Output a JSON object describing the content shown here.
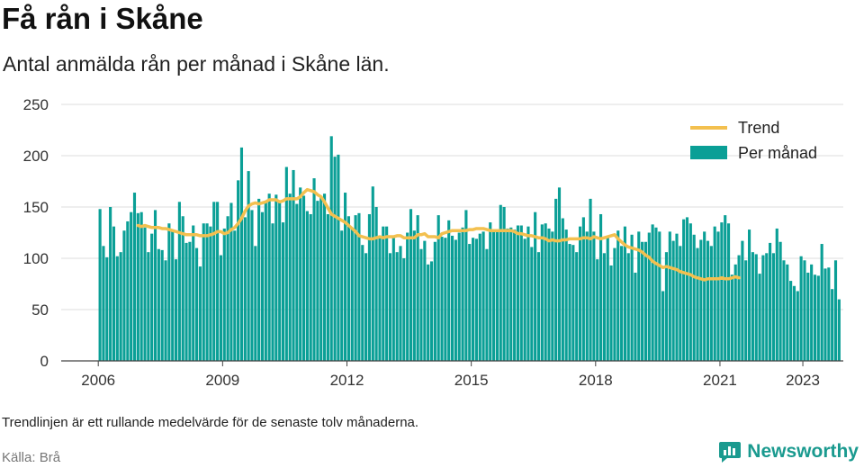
{
  "header": {
    "title": "Få rån i Skåne",
    "subtitle": "Antal anmälda rån per månad i Skåne län."
  },
  "footer": {
    "note": "Trendlinjen är ett rullande medelvärde för de senaste tolv månaderna.",
    "source": "Källa: Brå",
    "brand": "Newsworthy"
  },
  "colors": {
    "bar": "#0a9f96",
    "trend": "#f3c04f",
    "grid": "#dddddd",
    "brand": "#1a9a8f"
  },
  "chart_data": {
    "type": "bar",
    "title": "Få rån i Skåne",
    "subtitle": "Antal anmälda rån per månad i Skåne län.",
    "xlabel": "",
    "ylabel": "",
    "ylim": [
      0,
      250
    ],
    "yticks": [
      0,
      50,
      100,
      150,
      200,
      250
    ],
    "xticks": [
      "2006",
      "2009",
      "2012",
      "2015",
      "2018",
      "2021",
      "2023"
    ],
    "grid": true,
    "legend_position": "top-right",
    "start": "2006-01",
    "x_unit": "month",
    "series": [
      {
        "name": "Per månad",
        "type": "bar",
        "values": [
          148,
          112,
          101,
          150,
          131,
          102,
          106,
          127,
          136,
          145,
          164,
          144,
          145,
          130,
          106,
          124,
          147,
          109,
          108,
          98,
          134,
          127,
          99,
          155,
          141,
          115,
          116,
          132,
          110,
          92,
          134,
          134,
          131,
          155,
          155,
          103,
          129,
          141,
          154,
          127,
          176,
          208,
          140,
          185,
          147,
          112,
          158,
          145,
          154,
          163,
          134,
          162,
          154,
          135,
          189,
          163,
          186,
          153,
          169,
          161,
          146,
          143,
          178,
          156,
          160,
          163,
          143,
          219,
          199,
          201,
          127,
          164,
          141,
          129,
          142,
          144,
          113,
          105,
          143,
          170,
          150,
          122,
          131,
          131,
          105,
          120,
          106,
          112,
          100,
          125,
          148,
          127,
          142,
          109,
          117,
          94,
          97,
          116,
          142,
          121,
          120,
          137,
          122,
          118,
          125,
          130,
          147,
          114,
          120,
          119,
          124,
          126,
          109,
          135,
          128,
          126,
          152,
          150,
          129,
          130,
          128,
          132,
          132,
          119,
          131,
          111,
          145,
          106,
          133,
          134,
          129,
          126,
          158,
          169,
          139,
          128,
          114,
          113,
          106,
          131,
          140,
          126,
          158,
          126,
          99,
          143,
          105,
          120,
          93,
          110,
          127,
          112,
          131,
          105,
          123,
          86,
          126,
          116,
          116,
          125,
          133,
          130,
          126,
          68,
          106,
          126,
          117,
          124,
          112,
          138,
          140,
          134,
          123,
          110,
          118,
          126,
          117,
          112,
          131,
          126,
          135,
          142,
          134,
          84,
          94,
          103,
          117,
          98,
          128,
          106,
          104,
          85,
          103,
          105,
          115,
          105,
          129,
          116,
          98,
          94,
          78,
          73,
          68,
          102,
          98,
          86,
          94,
          84,
          83,
          114,
          90,
          91,
          70,
          98,
          60
        ]
      },
      {
        "name": "Trend",
        "type": "line",
        "start_index": 11,
        "values": [
          132,
          131,
          132,
          131,
          130,
          130,
          130,
          129,
          129,
          128,
          127,
          126,
          125,
          124,
          123,
          123,
          123,
          123,
          122,
          122,
          122,
          123,
          124,
          126,
          126,
          124,
          125,
          128,
          130,
          134,
          139,
          146,
          151,
          153,
          154,
          153,
          154,
          155,
          157,
          157,
          157,
          155,
          156,
          158,
          158,
          158,
          158,
          160,
          164,
          167,
          166,
          165,
          162,
          160,
          155,
          149,
          143,
          141,
          139,
          137,
          135,
          132,
          129,
          126,
          122,
          121,
          120,
          119,
          119,
          120,
          121,
          120,
          121,
          121,
          121,
          122,
          122,
          120,
          120,
          120,
          120,
          123,
          123,
          124,
          121,
          121,
          121,
          120,
          124,
          125,
          126,
          127,
          127,
          127,
          127,
          127,
          128,
          128,
          129,
          129,
          129,
          128,
          127,
          127,
          127,
          127,
          127,
          127,
          127,
          126,
          124,
          124,
          123,
          122,
          122,
          121,
          120,
          120,
          119,
          117,
          118,
          117,
          117,
          118,
          118,
          119,
          119,
          119,
          119,
          120,
          120,
          119,
          121,
          120,
          119,
          120,
          121,
          122,
          123,
          119,
          116,
          113,
          111,
          110,
          109,
          108,
          106,
          103,
          101,
          97,
          95,
          93,
          91,
          92,
          91,
          90,
          89,
          87,
          86,
          85,
          84,
          82,
          81,
          80,
          79,
          80,
          80,
          80,
          80,
          81,
          80,
          80,
          81,
          82,
          81
        ]
      }
    ]
  }
}
